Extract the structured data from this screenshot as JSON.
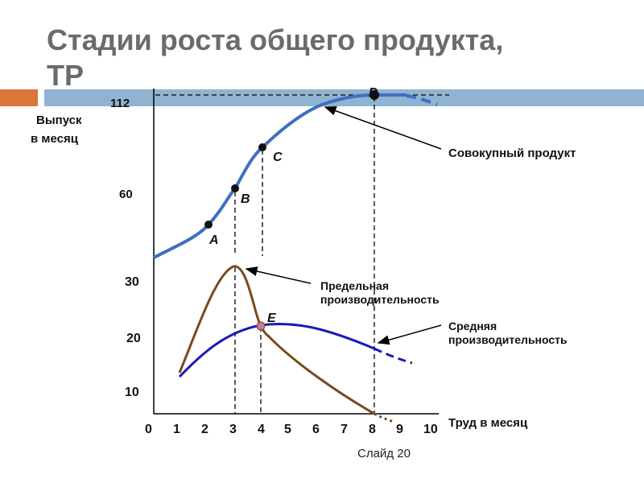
{
  "slide": {
    "title_line1": "Стадии роста общего продукта,",
    "title_line2": "ТР",
    "footer": "Слайд 20"
  },
  "theme": {
    "tp_color": "#3f6fbf",
    "mp_color": "#7a4a1c",
    "ap_color": "#1a1ab8",
    "orange": "#d9773a",
    "bar": "#8fb3d1"
  },
  "upper_axis": {
    "ylabel_line1": "Выпуск",
    "ylabel_line2": "в месяц",
    "ticks": [
      "112",
      "60"
    ]
  },
  "lower_axis": {
    "yticks": [
      "30",
      "20",
      "10"
    ],
    "xticks": [
      "0",
      "1",
      "2",
      "3",
      "4",
      "5",
      "6",
      "7",
      "8",
      "9",
      "10"
    ],
    "xlabel": "Труд в месяц"
  },
  "points": {
    "A": "A",
    "B": "B",
    "C": "C",
    "D": "D",
    "E": "E"
  },
  "annotations": {
    "tp": "Совокупный продукт",
    "mp_line1": "Предельная",
    "mp_line2": "производительность",
    "ap_line1": "Средняя",
    "ap_line2": "производительность"
  }
}
